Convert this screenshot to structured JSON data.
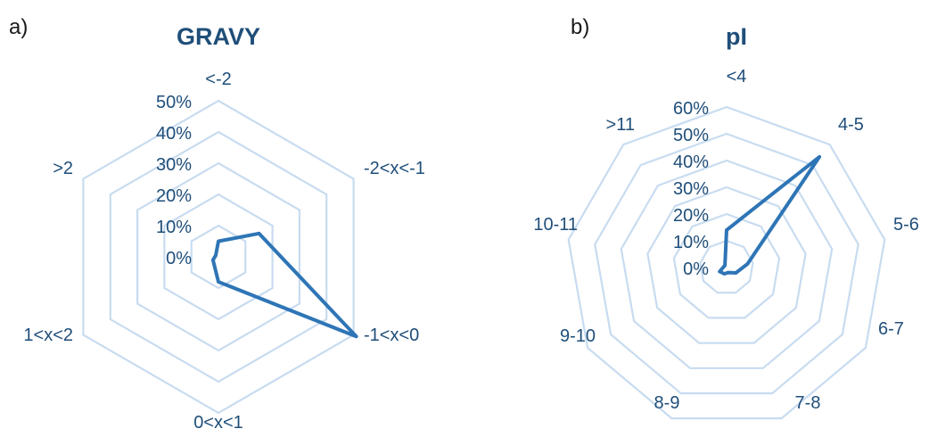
{
  "chart_data": [
    {
      "type": "radar",
      "panel": "a)",
      "title": "GRAVY",
      "categories": [
        "<-2",
        "-2<x<-1",
        "-1<x<0",
        "0<x<1",
        "1<x<2",
        ">2"
      ],
      "values": [
        0.05,
        0.15,
        0.57,
        0.08,
        0.02,
        0.01
      ],
      "rlim": [
        0,
        0.5
      ],
      "ticks": [
        "0%",
        "10%",
        "20%",
        "30%",
        "40%",
        "50%"
      ],
      "grid": true,
      "colors": {
        "series": "#2e75b6",
        "grid": "#c8dcf0",
        "text": "#1f4e79"
      }
    },
    {
      "type": "radar",
      "panel": "b)",
      "title": "pI",
      "categories": [
        "<4",
        "4-5",
        "5-6",
        "6-7",
        "7-8",
        "8-9",
        "9-10",
        "10-11",
        ">11"
      ],
      "values": [
        0.14,
        0.54,
        0.08,
        0.04,
        0.02,
        0.025,
        0.03,
        0.012,
        0.01
      ],
      "rlim": [
        0,
        0.6
      ],
      "ticks": [
        "0%",
        "10%",
        "20%",
        "30%",
        "40%",
        "50%",
        "60%"
      ],
      "grid": true,
      "colors": {
        "series": "#2e75b6",
        "grid": "#c8dcf0",
        "text": "#1f4e79"
      }
    }
  ]
}
